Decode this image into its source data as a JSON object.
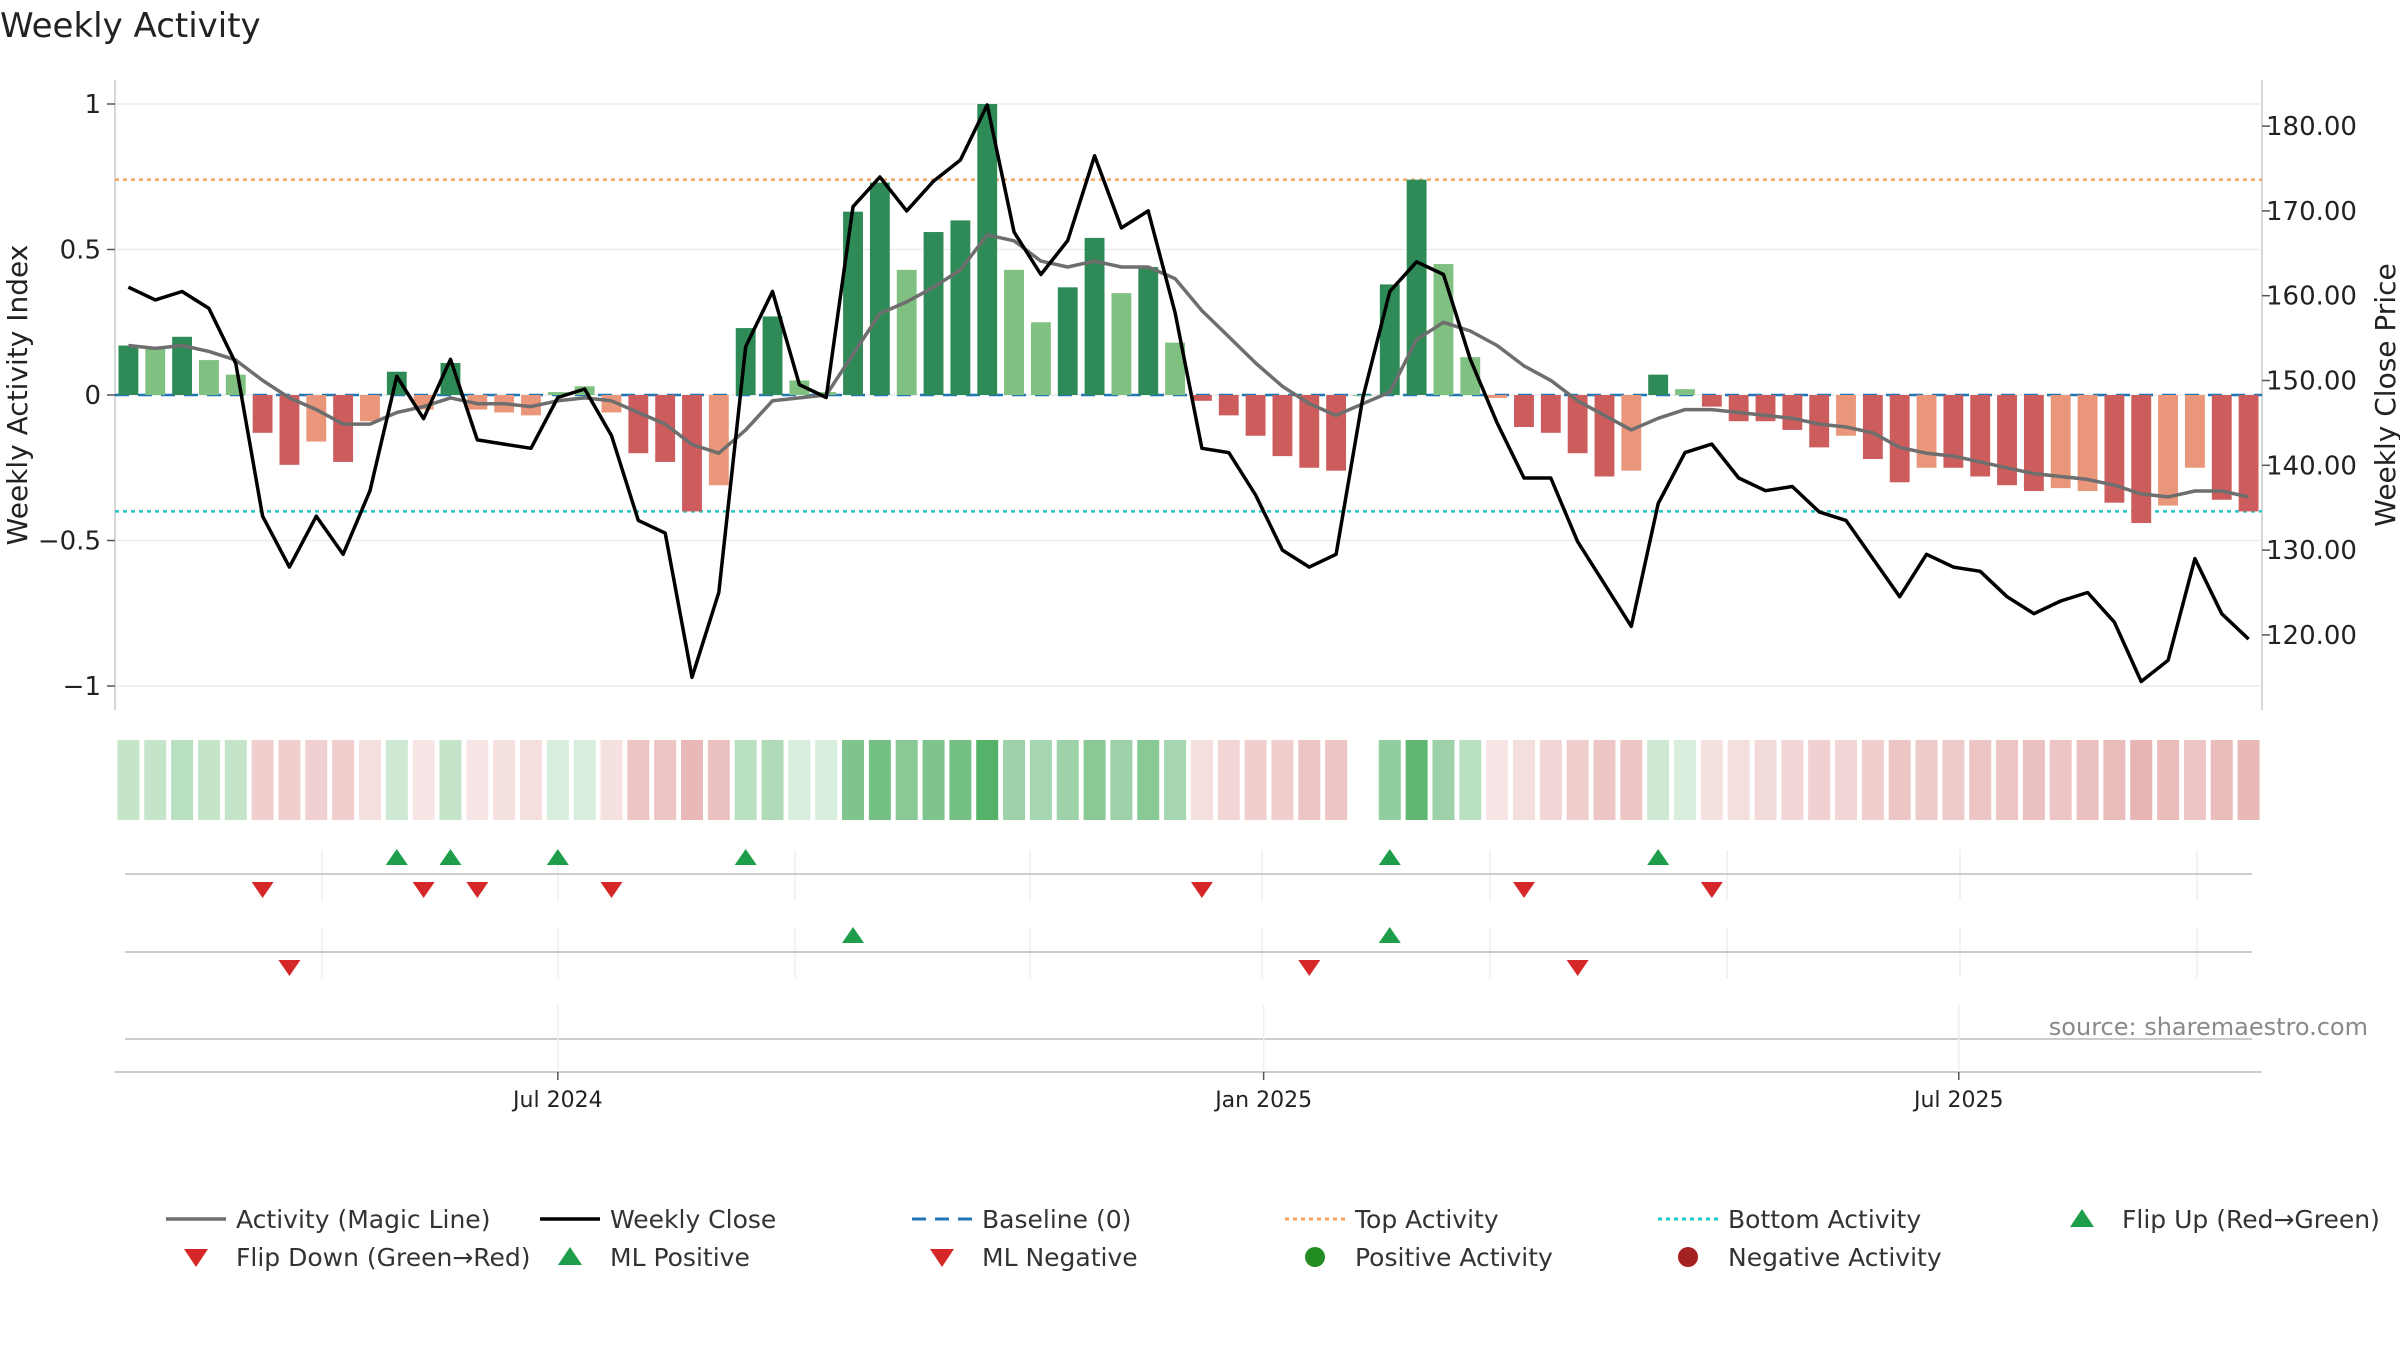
{
  "chart_data": {
    "type": "bar",
    "title": "Weekly Activity",
    "ylabel": "Weekly Activity Index",
    "y2label": "Weekly Close Price",
    "ylim": [
      -1.1,
      1.05
    ],
    "y2lim": [
      111.5,
      185.5
    ],
    "yticks": [
      1,
      0.5,
      0,
      -0.5,
      -1
    ],
    "ytick_labels": [
      "1",
      "0.5",
      "0",
      "−0.5",
      "−1"
    ],
    "y2ticks": [
      180,
      170,
      160,
      150,
      140,
      130,
      120
    ],
    "y2tick_labels": [
      "180.00",
      "170.00",
      "160.00",
      "150.00",
      "140.00",
      "130.00",
      "120.00"
    ],
    "xtick_labels": [
      "Jul 2024",
      "Jan 2025",
      "Jul 2025"
    ],
    "xtick_weeks": [
      16.5,
      42.8,
      68.7
    ],
    "grid": true,
    "top_activity": 0.74,
    "bottom_activity": -0.4,
    "source_text": "source: sharemaestro.com",
    "colors": {
      "strong_pos": "#2e8b57",
      "weak_pos": "#80c080",
      "strong_neg": "#cd5c5c",
      "weak_neg": "#e9967a",
      "magic_line": "#6e6e6e",
      "close_line": "#000000",
      "baseline": "#1f77b4",
      "top_line": "#f4a460",
      "bottom_line": "#20c8c8",
      "marker_up": "#1e9e4a",
      "marker_down": "#d62728",
      "pos_dot": "#228b22",
      "neg_dot": "#a52020"
    },
    "activity": [
      0.17,
      0.16,
      0.2,
      0.12,
      0.07,
      -0.13,
      -0.24,
      -0.16,
      -0.23,
      -0.09,
      0.08,
      -0.05,
      0.11,
      -0.05,
      -0.06,
      -0.07,
      0.01,
      0.03,
      -0.06,
      -0.2,
      -0.23,
      -0.4,
      -0.31,
      0.23,
      0.27,
      0.05,
      0.01,
      0.63,
      0.73,
      0.43,
      0.56,
      0.6,
      1.0,
      0.43,
      0.25,
      0.37,
      0.54,
      0.35,
      0.44,
      0.18,
      -0.02,
      -0.07,
      -0.14,
      -0.21,
      -0.25,
      -0.26,
      0.0,
      0.38,
      0.74,
      0.45,
      0.13,
      -0.01,
      -0.11,
      -0.13,
      -0.2,
      -0.28,
      -0.26,
      0.07,
      0.02,
      -0.04,
      -0.09,
      -0.09,
      -0.12,
      -0.18,
      -0.14,
      -0.22,
      -0.3,
      -0.25,
      -0.25,
      -0.28,
      -0.31,
      -0.33,
      -0.32,
      -0.33,
      -0.37,
      -0.44,
      -0.38,
      -0.25,
      -0.36,
      -0.4
    ],
    "strength": [
      "s",
      "w",
      "s",
      "w",
      "w",
      "s",
      "s",
      "w",
      "s",
      "w",
      "s",
      "w",
      "s",
      "w",
      "w",
      "w",
      "w",
      "w",
      "w",
      "s",
      "s",
      "s",
      "w",
      "s",
      "s",
      "w",
      "w",
      "s",
      "s",
      "w",
      "s",
      "s",
      "s",
      "w",
      "w",
      "s",
      "s",
      "w",
      "s",
      "w",
      "s",
      "s",
      "s",
      "s",
      "s",
      "s",
      "w",
      "s",
      "s",
      "w",
      "w",
      "w",
      "s",
      "s",
      "s",
      "s",
      "w",
      "s",
      "w",
      "s",
      "s",
      "s",
      "s",
      "s",
      "w",
      "s",
      "s",
      "w",
      "s",
      "s",
      "s",
      "s",
      "w",
      "w",
      "s",
      "s",
      "w",
      "w",
      "s",
      "s"
    ],
    "magic_line": [
      0.17,
      0.16,
      0.17,
      0.15,
      0.12,
      0.05,
      -0.01,
      -0.05,
      -0.1,
      -0.1,
      -0.06,
      -0.04,
      -0.01,
      -0.03,
      -0.03,
      -0.04,
      -0.02,
      -0.01,
      -0.02,
      -0.06,
      -0.1,
      -0.17,
      -0.2,
      -0.12,
      -0.02,
      -0.01,
      0.0,
      0.14,
      0.28,
      0.32,
      0.37,
      0.43,
      0.55,
      0.53,
      0.46,
      0.44,
      0.46,
      0.44,
      0.44,
      0.4,
      0.29,
      0.2,
      0.11,
      0.03,
      -0.03,
      -0.07,
      -0.03,
      0.01,
      0.19,
      0.25,
      0.22,
      0.17,
      0.1,
      0.05,
      -0.02,
      -0.07,
      -0.12,
      -0.08,
      -0.05,
      -0.05,
      -0.06,
      -0.07,
      -0.08,
      -0.1,
      -0.11,
      -0.13,
      -0.18,
      -0.2,
      -0.21,
      -0.23,
      -0.25,
      -0.27,
      -0.28,
      -0.29,
      -0.31,
      -0.34,
      -0.35,
      -0.33,
      -0.33,
      -0.35
    ],
    "weekly_close": [
      161.0,
      159.5,
      160.5,
      158.5,
      152.0,
      134.0,
      128.0,
      134.0,
      129.5,
      137.0,
      150.5,
      145.5,
      152.5,
      143.0,
      142.5,
      142.0,
      148.0,
      149.0,
      143.5,
      133.5,
      132.0,
      115.0,
      125.0,
      154.0,
      160.5,
      149.5,
      148.0,
      170.5,
      174.0,
      170.0,
      173.5,
      176.0,
      182.5,
      167.5,
      162.5,
      166.5,
      176.5,
      168.0,
      170.0,
      158.0,
      142.0,
      141.5,
      136.5,
      130.0,
      128.0,
      129.5,
      148.0,
      160.5,
      164.0,
      162.5,
      152.5,
      145.0,
      138.5,
      138.5,
      131.0,
      126.0,
      121.0,
      135.5,
      141.5,
      142.5,
      138.5,
      137.0,
      137.5,
      134.5,
      133.5,
      129.0,
      124.5,
      129.5,
      128.0,
      127.5,
      124.5,
      122.5,
      124.0,
      125.0,
      121.5,
      114.5,
      117.0,
      129.0,
      122.5,
      119.5
    ],
    "heat_strip_intensity": [
      0.3,
      0.3,
      0.35,
      0.3,
      0.3,
      -0.3,
      -0.3,
      -0.28,
      -0.3,
      -0.2,
      0.25,
      -0.15,
      0.3,
      -0.15,
      -0.18,
      -0.2,
      0.2,
      0.2,
      -0.18,
      -0.35,
      -0.35,
      -0.42,
      -0.38,
      0.35,
      0.4,
      0.2,
      0.2,
      0.65,
      0.7,
      0.6,
      0.65,
      0.7,
      0.85,
      0.5,
      0.45,
      0.5,
      0.6,
      0.5,
      0.6,
      0.45,
      -0.2,
      -0.25,
      -0.3,
      -0.3,
      -0.35,
      -0.35,
      null,
      0.55,
      0.8,
      0.5,
      0.35,
      -0.15,
      -0.2,
      -0.25,
      -0.3,
      -0.35,
      -0.35,
      0.25,
      0.2,
      -0.18,
      -0.2,
      -0.22,
      -0.25,
      -0.28,
      -0.25,
      -0.3,
      -0.35,
      -0.32,
      -0.32,
      -0.35,
      -0.35,
      -0.38,
      -0.35,
      -0.38,
      -0.4,
      -0.45,
      -0.4,
      -0.35,
      -0.4,
      -0.42
    ],
    "flip_up_weeks": [
      10,
      12,
      16,
      23,
      47,
      57
    ],
    "flip_down_weeks": [
      5,
      11,
      13,
      18,
      40,
      52,
      59
    ],
    "ml_positive_weeks": [
      27,
      47
    ],
    "ml_negative_weeks": [
      6,
      44,
      54
    ],
    "legend": [
      {
        "label": "Activity (Magic Line)",
        "kind": "line",
        "color": "#6e6e6e"
      },
      {
        "label": "Weekly Close",
        "kind": "line",
        "color": "#000000"
      },
      {
        "label": "Baseline (0)",
        "kind": "dashed",
        "color": "#1f77b4"
      },
      {
        "label": "Top Activity",
        "kind": "dotted",
        "color": "#f4a460"
      },
      {
        "label": "Bottom Activity",
        "kind": "dotted",
        "color": "#20c8c8"
      },
      {
        "label": "Flip Up (Red→Green)",
        "kind": "tri-up",
        "color": "#1e9e4a"
      },
      {
        "label": "Flip Down (Green→Red)",
        "kind": "tri-down",
        "color": "#d62728"
      },
      {
        "label": "ML Positive",
        "kind": "tri-up",
        "color": "#1e9e4a"
      },
      {
        "label": "ML Negative",
        "kind": "tri-down",
        "color": "#d62728"
      },
      {
        "label": "Positive Activity",
        "kind": "dot",
        "color": "#228b22"
      },
      {
        "label": "Negative Activity",
        "kind": "dot",
        "color": "#a52020"
      }
    ]
  }
}
